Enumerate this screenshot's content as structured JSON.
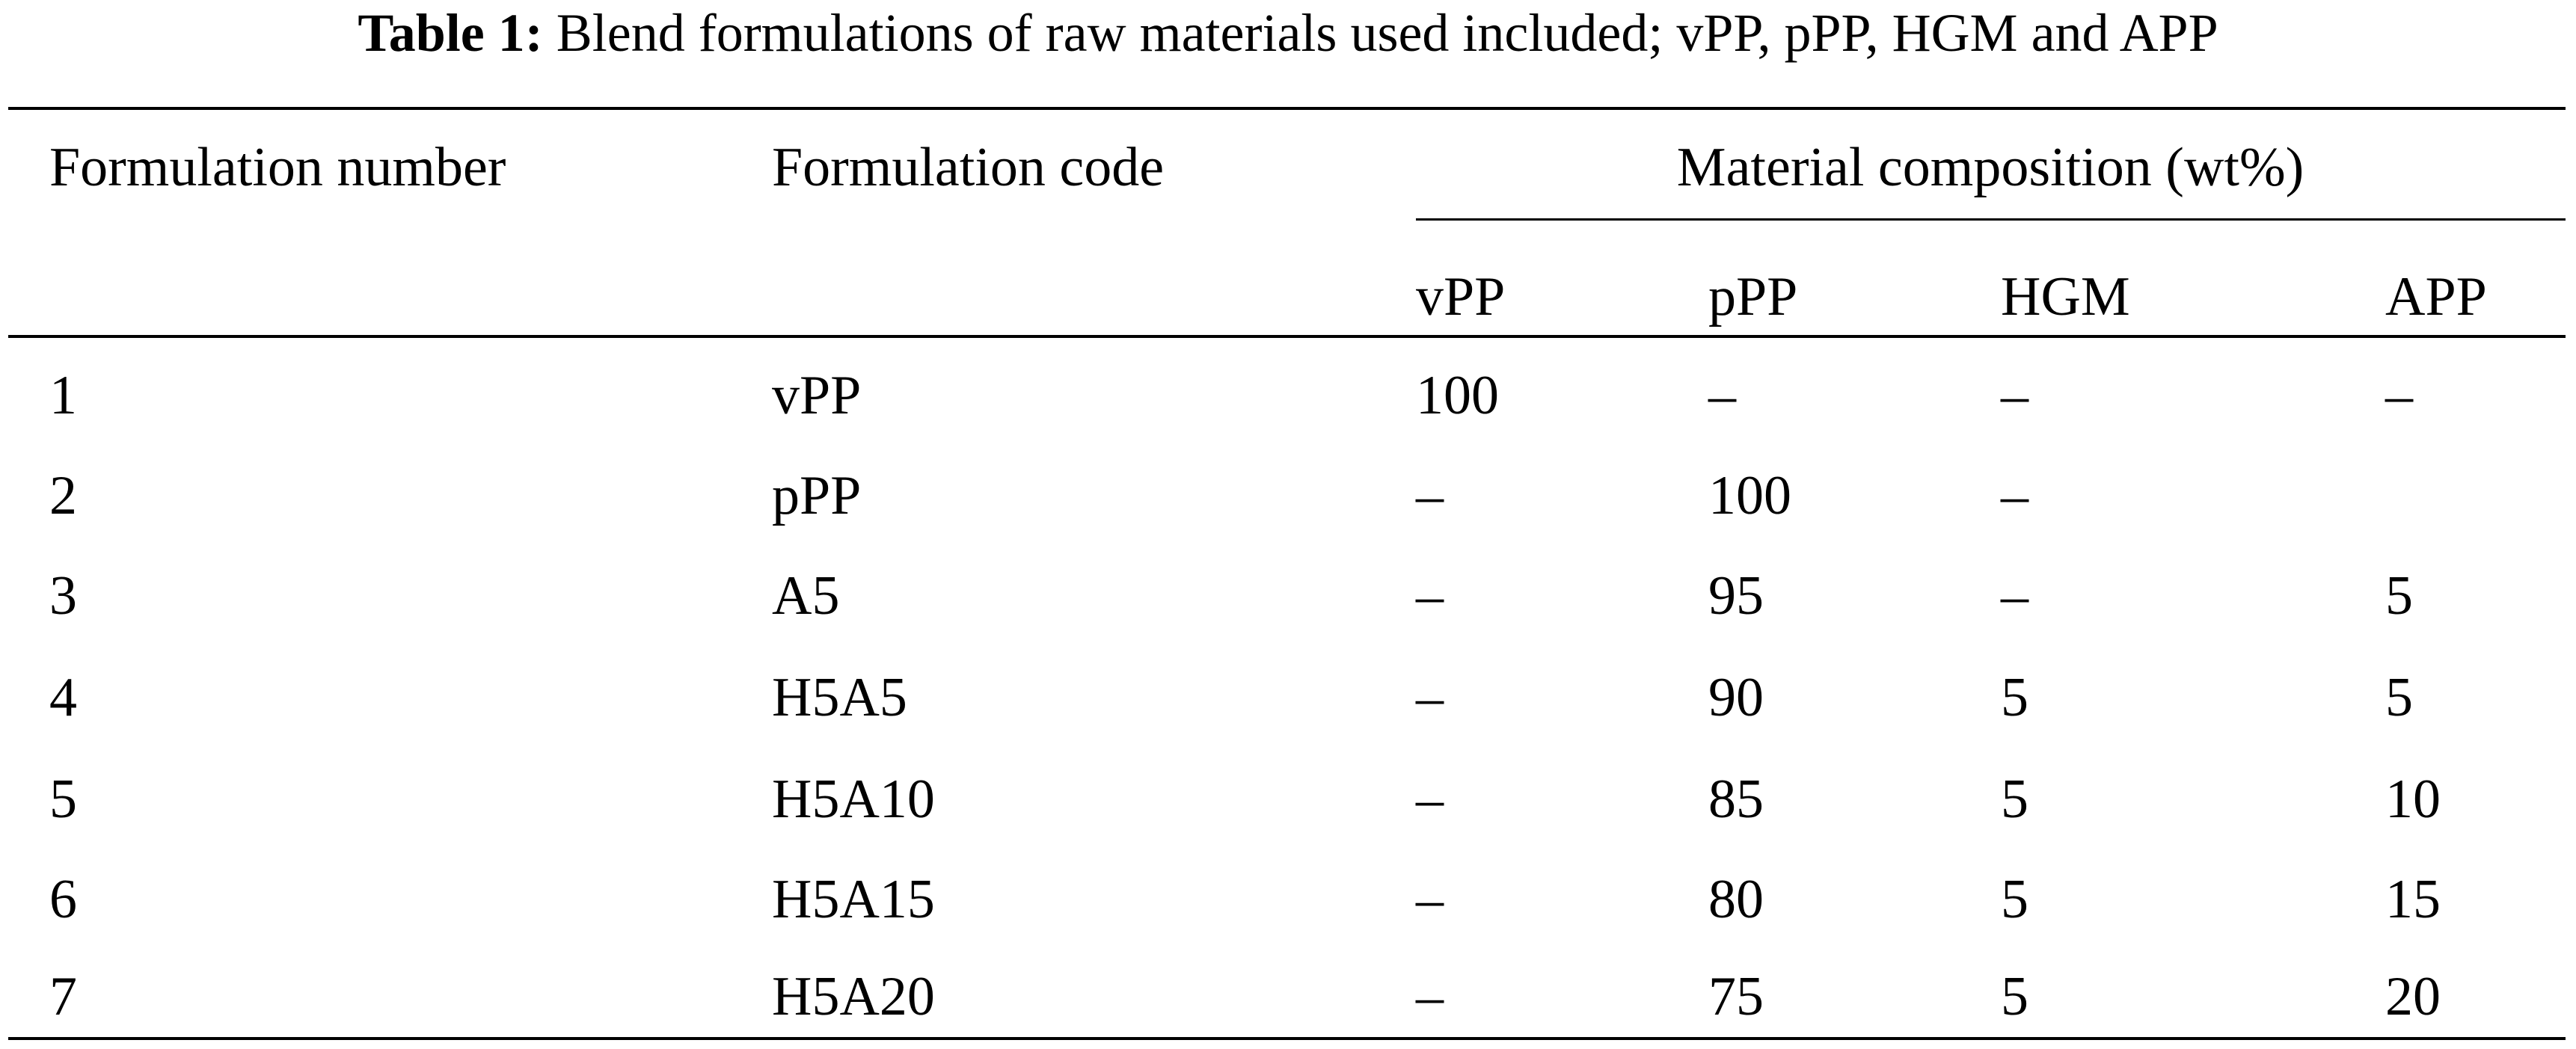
{
  "caption": {
    "label": "Table 1:",
    "text": "Blend formulations of raw materials used included; vPP, pPP, HGM and APP"
  },
  "table": {
    "headers": [
      "Formulation number",
      "Formulation code",
      "Material composition (wt%)"
    ],
    "subheaders": [
      "vPP",
      "pPP",
      "HGM",
      "APP"
    ],
    "rows": [
      [
        1,
        "vPP",
        100,
        "–",
        "–",
        "–"
      ],
      [
        2,
        "pPP",
        "–",
        100,
        "–",
        null
      ],
      [
        3,
        "A5",
        "–",
        95,
        "–",
        5
      ],
      [
        4,
        "H5A5",
        "–",
        90,
        5,
        5
      ],
      [
        5,
        "H5A10",
        "–",
        85,
        5,
        10
      ],
      [
        6,
        "H5A15",
        "–",
        80,
        5,
        15
      ],
      [
        7,
        "H5A20",
        "–",
        75,
        5,
        20
      ]
    ]
  }
}
